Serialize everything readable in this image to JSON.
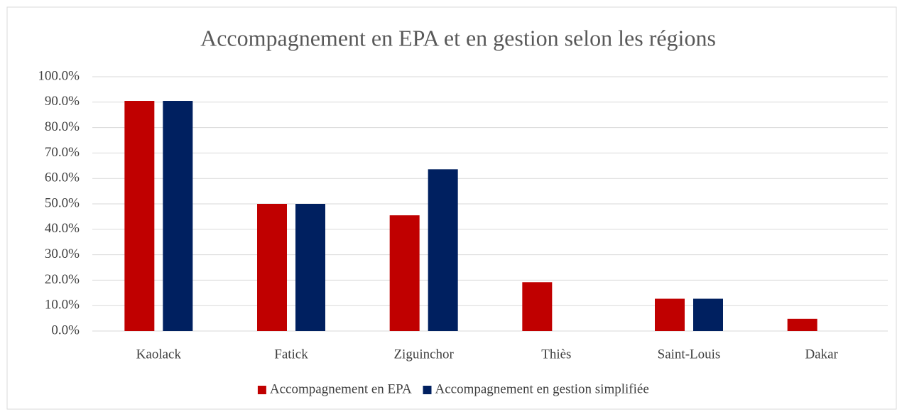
{
  "chart_data": {
    "type": "bar",
    "title": "Accompagnement en EPA et en gestion selon les régions",
    "categories": [
      "Kaolack",
      "Fatick",
      "Ziguinchor",
      "Thiès",
      "Saint-Louis",
      "Dakar"
    ],
    "series": [
      {
        "name": "Accompagnement en EPA",
        "color": "#c00000",
        "values": [
          90.5,
          50,
          45.5,
          19.2,
          12.7,
          4.8
        ]
      },
      {
        "name": "Accompagnement en gestion simplifiée",
        "color": "#002060",
        "values": [
          90.5,
          50,
          63.6,
          0,
          12.7,
          0
        ]
      }
    ],
    "ylim": [
      0,
      100
    ],
    "yticks": [
      {
        "value": 0,
        "label": "0.0%"
      },
      {
        "value": 10,
        "label": "10.0%"
      },
      {
        "value": 20,
        "label": "20.0%"
      },
      {
        "value": 30,
        "label": "30.0%"
      },
      {
        "value": 40,
        "label": "40.0%"
      },
      {
        "value": 50,
        "label": "50.0%"
      },
      {
        "value": 60,
        "label": "60.0%"
      },
      {
        "value": 70,
        "label": "70.0%"
      },
      {
        "value": 80,
        "label": "80.0%"
      },
      {
        "value": 90,
        "label": "90.0%"
      },
      {
        "value": 100,
        "label": "100.0%"
      }
    ],
    "grid": true,
    "legend": "bottom"
  }
}
